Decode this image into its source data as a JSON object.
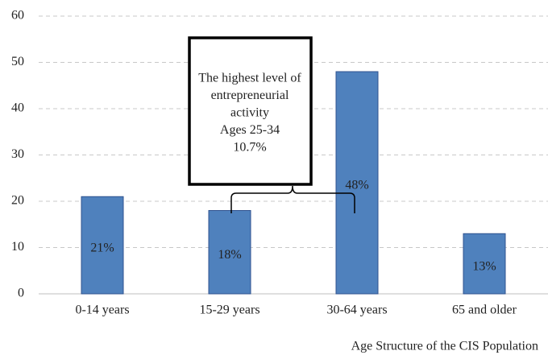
{
  "chart_data": {
    "type": "bar",
    "xlabel": "Age Structure of the CIS Population",
    "categories": [
      "0-14 years",
      "15-29 years",
      "30-64 years",
      "65 and older"
    ],
    "values": [
      21,
      18,
      48,
      13
    ],
    "value_labels": [
      "21%",
      "18%",
      "48%",
      "13%"
    ],
    "color": "#4f81bd",
    "ylim": [
      0,
      60
    ],
    "yticks": [
      0,
      10,
      20,
      30,
      40,
      50,
      60
    ],
    "grid": true,
    "annotation": [
      "The highest level of",
      "entrepreneurial",
      "activity",
      "Ages 25-34",
      "10.7%"
    ]
  }
}
